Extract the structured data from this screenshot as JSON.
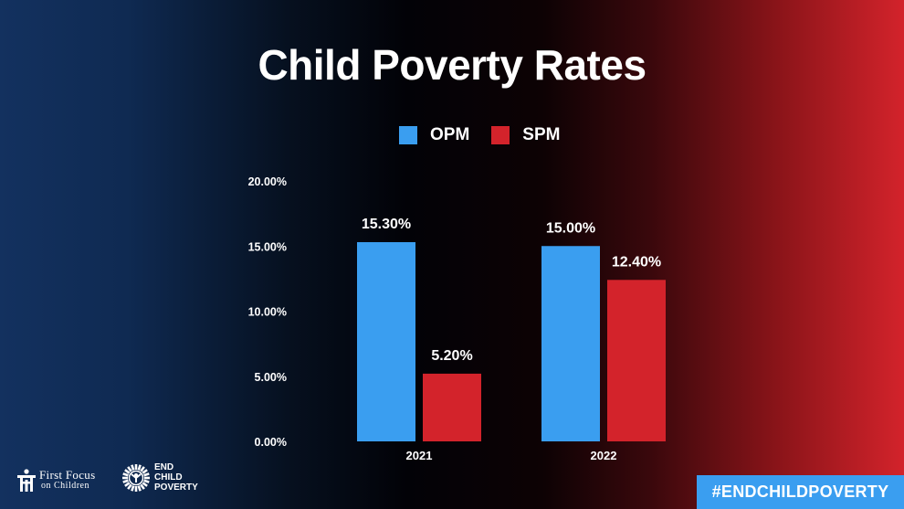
{
  "chart_data": {
    "type": "bar",
    "title": "Child Poverty Rates",
    "xlabel": "",
    "ylabel": "",
    "categories": [
      "2021",
      "2022"
    ],
    "series": [
      {
        "name": "OPM",
        "color": "#3a9ef0",
        "values": [
          15.3,
          15.0
        ],
        "labels": [
          "15.30%",
          "15.00%"
        ]
      },
      {
        "name": "SPM",
        "color": "#d3232b",
        "values": [
          5.2,
          12.4
        ],
        "labels": [
          "5.20%",
          "12.40%"
        ]
      }
    ],
    "ylim": [
      0,
      20
    ],
    "yticks": [
      0,
      5,
      10,
      15,
      20
    ],
    "ytick_labels": [
      "0.00%",
      "5.00%",
      "10.00%",
      "15.00%",
      "20.00%"
    ],
    "grid": false,
    "legend": "top-center"
  },
  "footer": {
    "logo_first_focus": {
      "line1": "First Focus",
      "line2": "on Children"
    },
    "logo_end_child_poverty": {
      "line1": "END",
      "line2": "CHILD",
      "line3": "POVERTY"
    },
    "hashtag": "#ENDCHILDPOVERTY"
  }
}
